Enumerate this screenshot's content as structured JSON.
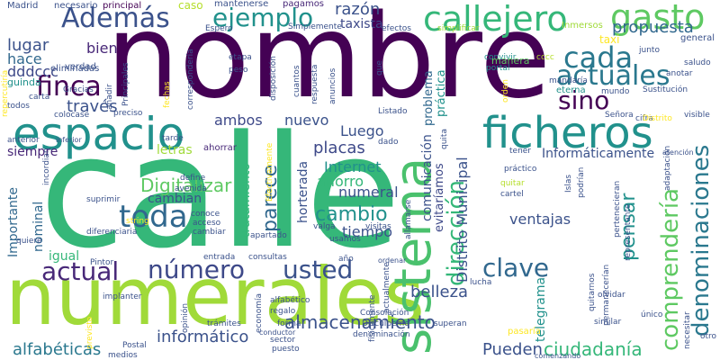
{
  "palette": {
    "dark_purple": "#440154",
    "deep_blue": "#3b528b",
    "teal": "#21918c",
    "green": "#5ec962",
    "bright_green": "#35b779",
    "lime": "#b5de2b",
    "yellow": "#fde725"
  },
  "words": [
    {
      "text": "nombre",
      "color": "#440154",
      "vertical": false
    },
    {
      "text": "calle",
      "color": "#35b779",
      "vertical": false
    },
    {
      "text": "numerales",
      "color": "#a0da39",
      "vertical": false
    },
    {
      "text": "espacio",
      "color": "#21918c",
      "vertical": false
    },
    {
      "text": "ficheros",
      "color": "#21918c",
      "vertical": false
    },
    {
      "text": "sistema",
      "color": "#4ac16d",
      "vertical": true
    },
    {
      "text": "callejero",
      "color": "#35b779",
      "vertical": false
    },
    {
      "text": "gasto",
      "color": "#5ec962",
      "vertical": false
    },
    {
      "text": "Además",
      "color": "#3b528b",
      "vertical": false
    },
    {
      "text": "ejemplo",
      "color": "#21918c",
      "vertical": false
    },
    {
      "text": "cada",
      "color": "#2a788e",
      "vertical": false
    },
    {
      "text": "actuales",
      "color": "#2a788e",
      "vertical": false
    },
    {
      "text": "sino",
      "color": "#440154",
      "vertical": false
    },
    {
      "text": "finca",
      "color": "#440154",
      "vertical": false
    },
    {
      "text": "toda",
      "color": "#31688e",
      "vertical": false
    },
    {
      "text": "actual",
      "color": "#482878",
      "vertical": false
    },
    {
      "text": "número",
      "color": "#3e4989",
      "vertical": false
    },
    {
      "text": "usted",
      "color": "#3b528b",
      "vertical": false
    },
    {
      "text": "clave",
      "color": "#31688e",
      "vertical": false
    },
    {
      "text": "dirección",
      "color": "#35b779",
      "vertical": true
    },
    {
      "text": "denominaciones",
      "color": "#2a788e",
      "vertical": true
    },
    {
      "text": "comprendería",
      "color": "#5ec962",
      "vertical": true
    },
    {
      "text": "pensar",
      "color": "#21918c",
      "vertical": true
    },
    {
      "text": "parece",
      "color": "#31688e",
      "vertical": true
    },
    {
      "text": "cambio",
      "color": "#21918c",
      "vertical": false
    },
    {
      "text": "Digitalizar",
      "color": "#5ec962",
      "vertical": false
    },
    {
      "text": "almacenamiento",
      "color": "#3b528b",
      "vertical": false
    },
    {
      "text": "informático",
      "color": "#3b528b",
      "vertical": false
    },
    {
      "text": "alfabéticas",
      "color": "#2a788e",
      "vertical": false
    },
    {
      "text": "ciudadanía",
      "color": "#35b779",
      "vertical": false
    },
    {
      "text": "Pueden",
      "color": "#3b528b",
      "vertical": false
    },
    {
      "text": "propuesta",
      "color": "#31688e",
      "vertical": false
    },
    {
      "text": "razón",
      "color": "#3b528b",
      "vertical": false
    },
    {
      "text": "taxista",
      "color": "#3e4989",
      "vertical": false
    },
    {
      "text": "lugar",
      "color": "#3b528b",
      "vertical": false
    },
    {
      "text": "hace",
      "color": "#31688e",
      "vertical": false
    },
    {
      "text": "bien",
      "color": "#482878",
      "vertical": false
    },
    {
      "text": "dddccc",
      "color": "#3e4989",
      "vertical": false
    },
    {
      "text": "través",
      "color": "#3b528b",
      "vertical": false
    },
    {
      "text": "ambos",
      "color": "#3e4989",
      "vertical": false
    },
    {
      "text": "nuevo",
      "color": "#3b528b",
      "vertical": false
    },
    {
      "text": "Luego",
      "color": "#3b528b",
      "vertical": false
    },
    {
      "text": "placas",
      "color": "#3e4989",
      "vertical": false
    },
    {
      "text": "Internet",
      "color": "#21918c",
      "vertical": false
    },
    {
      "text": "ahorro",
      "color": "#35b779",
      "vertical": false
    },
    {
      "text": "numeral",
      "color": "#3b528b",
      "vertical": false
    },
    {
      "text": "tiempo",
      "color": "#3b528b",
      "vertical": false
    },
    {
      "text": "ventajas",
      "color": "#3b528b",
      "vertical": false
    },
    {
      "text": "belleza",
      "color": "#3b528b",
      "vertical": false
    },
    {
      "text": "Informáticamente",
      "color": "#3b528b",
      "vertical": false
    },
    {
      "text": "siempre",
      "color": "#482878",
      "vertical": false
    },
    {
      "text": "letras",
      "color": "#a0da39",
      "vertical": false
    },
    {
      "text": "cambian",
      "color": "#3b528b",
      "vertical": false
    },
    {
      "text": "igual",
      "color": "#35b779",
      "vertical": false
    },
    {
      "text": "nominal",
      "color": "#31688e",
      "vertical": true
    },
    {
      "text": "Importante",
      "color": "#31688e",
      "vertical": true
    },
    {
      "text": "tratamiento",
      "color": "#35b779",
      "vertical": true
    },
    {
      "text": "horterada",
      "color": "#3b528b",
      "vertical": true
    },
    {
      "text": "Distrito Municipal",
      "color": "#3b528b",
      "vertical": true
    },
    {
      "text": "comunicación",
      "color": "#3b528b",
      "vertical": true
    },
    {
      "text": "evitaríamos",
      "color": "#3e4989",
      "vertical": true
    },
    {
      "text": "problema",
      "color": "#31688e",
      "vertical": true
    },
    {
      "text": "práctica",
      "color": "#21918c",
      "vertical": true
    },
    {
      "text": "telegrama",
      "color": "#21918c",
      "vertical": true
    },
    {
      "text": "Madrid",
      "color": "#3b528b",
      "vertical": false
    },
    {
      "text": "necesario",
      "color": "#3b528b",
      "vertical": false
    },
    {
      "text": "principal",
      "color": "#440154",
      "vertical": false
    },
    {
      "text": "caso",
      "color": "#b5de2b",
      "vertical": false
    },
    {
      "text": "mantenerse",
      "color": "#3b528b",
      "vertical": false
    },
    {
      "text": "pagamos",
      "color": "#482878",
      "vertical": false
    },
    {
      "text": "guinda",
      "color": "#21918c",
      "vertical": false
    },
    {
      "text": "eliminadas",
      "color": "#3b528b",
      "vertical": false
    },
    {
      "text": "Gracias",
      "color": "#3b528b",
      "vertical": false
    },
    {
      "text": "verdad",
      "color": "#3b528b",
      "vertical": false
    },
    {
      "text": "Espero",
      "color": "#3b528b",
      "vertical": false
    },
    {
      "text": "Simplemente",
      "color": "#3b528b",
      "vertical": false
    },
    {
      "text": "efectos",
      "color": "#3b528b",
      "vertical": false
    },
    {
      "text": "simplificar",
      "color": "#a0da39",
      "vertical": false
    },
    {
      "text": "Inmersos",
      "color": "#a0da39",
      "vertical": false
    },
    {
      "text": "taxi",
      "color": "#fde725",
      "vertical": false
    },
    {
      "text": "general",
      "color": "#3b528b",
      "vertical": false
    },
    {
      "text": "junto",
      "color": "#3b528b",
      "vertical": false
    },
    {
      "text": "cccc",
      "color": "#b5de2b",
      "vertical": false
    },
    {
      "text": "anotar",
      "color": "#3b528b",
      "vertical": false
    },
    {
      "text": "saludo",
      "color": "#3b528b",
      "vertical": false
    },
    {
      "text": "Sustitución",
      "color": "#3b528b",
      "vertical": false
    },
    {
      "text": "mandaría",
      "color": "#3b528b",
      "vertical": false
    },
    {
      "text": "eterna",
      "color": "#21918c",
      "vertical": false
    },
    {
      "text": "mundo",
      "color": "#3b528b",
      "vertical": false
    },
    {
      "text": "Señora",
      "color": "#3b528b",
      "vertical": false
    },
    {
      "text": "cifra",
      "color": "#3b528b",
      "vertical": false
    },
    {
      "text": "Distrito",
      "color": "#fde725",
      "vertical": false
    },
    {
      "text": "visible",
      "color": "#3b528b",
      "vertical": false
    },
    {
      "text": "atención",
      "color": "#3b528b",
      "vertical": false
    },
    {
      "text": "etapa",
      "color": "#3b528b",
      "vertical": false
    },
    {
      "text": "peso",
      "color": "#3b528b",
      "vertical": false
    },
    {
      "text": "convivir",
      "color": "#21918c",
      "vertical": false
    },
    {
      "text": "portal",
      "color": "#21918c",
      "vertical": false
    },
    {
      "text": "manera",
      "color": "#5ec962",
      "vertical": false
    },
    {
      "text": "Listado",
      "color": "#3b528b",
      "vertical": false
    },
    {
      "text": "preciso",
      "color": "#3b528b",
      "vertical": false
    },
    {
      "text": "colocase",
      "color": "#3b528b",
      "vertical": false
    },
    {
      "text": "todos",
      "color": "#3b528b",
      "vertical": false
    },
    {
      "text": "carta",
      "color": "#3b528b",
      "vertical": false
    },
    {
      "text": "anterior",
      "color": "#3b528b",
      "vertical": false
    },
    {
      "text": "inferior",
      "color": "#3b528b",
      "vertical": false
    },
    {
      "text": "tarde",
      "color": "#3b528b",
      "vertical": false
    },
    {
      "text": "ahorrar",
      "color": "#482878",
      "vertical": false
    },
    {
      "text": "dado",
      "color": "#3b528b",
      "vertical": false
    },
    {
      "text": "tener",
      "color": "#3b528b",
      "vertical": false
    },
    {
      "text": "práctico",
      "color": "#3b528b",
      "vertical": false
    },
    {
      "text": "quitar",
      "color": "#b5de2b",
      "vertical": false
    },
    {
      "text": "cartel",
      "color": "#3b528b",
      "vertical": false
    },
    {
      "text": "define",
      "color": "#3b528b",
      "vertical": false
    },
    {
      "text": "avenida",
      "color": "#3b528b",
      "vertical": false
    },
    {
      "text": "suprimir",
      "color": "#3b528b",
      "vertical": false
    },
    {
      "text": "string",
      "color": "#fde725",
      "vertical": false
    },
    {
      "text": "conoce",
      "color": "#3b528b",
      "vertical": false
    },
    {
      "text": "acceso",
      "color": "#3b528b",
      "vertical": false
    },
    {
      "text": "cambiar",
      "color": "#3b528b",
      "vertical": false
    },
    {
      "text": "diferenciaria",
      "color": "#3b528b",
      "vertical": false
    },
    {
      "text": "valga",
      "color": "#3b528b",
      "vertical": false
    },
    {
      "text": "visitas",
      "color": "#3b528b",
      "vertical": false
    },
    {
      "text": "apartado",
      "color": "#3b528b",
      "vertical": false
    },
    {
      "text": "usamos",
      "color": "#3b528b",
      "vertical": false
    },
    {
      "text": "quiere",
      "color": "#3b528b",
      "vertical": false
    },
    {
      "text": "Pintor",
      "color": "#3b528b",
      "vertical": false
    },
    {
      "text": "entrada",
      "color": "#3b528b",
      "vertical": false
    },
    {
      "text": "consultas",
      "color": "#3b528b",
      "vertical": false
    },
    {
      "text": "año",
      "color": "#3b528b",
      "vertical": false
    },
    {
      "text": "ordenar",
      "color": "#3b528b",
      "vertical": false
    },
    {
      "text": "lucha",
      "color": "#3b528b",
      "vertical": false
    },
    {
      "text": "olvidar",
      "color": "#3b528b",
      "vertical": false
    },
    {
      "text": "implanter",
      "color": "#3b528b",
      "vertical": false
    },
    {
      "text": "alfabético",
      "color": "#3b528b",
      "vertical": false
    },
    {
      "text": "regalo",
      "color": "#3b528b",
      "vertical": false
    },
    {
      "text": "trámites",
      "color": "#3b528b",
      "vertical": false
    },
    {
      "text": "forma",
      "color": "#3b528b",
      "vertical": false
    },
    {
      "text": "puesto",
      "color": "#3b528b",
      "vertical": false
    },
    {
      "text": "sector",
      "color": "#3b528b",
      "vertical": false
    },
    {
      "text": "superan",
      "color": "#3b528b",
      "vertical": false
    },
    {
      "text": "similar",
      "color": "#3b528b",
      "vertical": false
    },
    {
      "text": "único",
      "color": "#3b528b",
      "vertical": false
    },
    {
      "text": "otro",
      "color": "#3b528b",
      "vertical": false
    },
    {
      "text": "Postal",
      "color": "#3b528b",
      "vertical": false
    },
    {
      "text": "medios",
      "color": "#3b528b",
      "vertical": false
    },
    {
      "text": "conductor",
      "color": "#3b528b",
      "vertical": false
    },
    {
      "text": "comenzando",
      "color": "#3b528b",
      "vertical": false
    },
    {
      "text": "denominación",
      "color": "#3b528b",
      "vertical": false
    },
    {
      "text": "Disculpeme",
      "color": "#3b528b",
      "vertical": false
    },
    {
      "text": "pasaría",
      "color": "#fde725",
      "vertical": false
    },
    {
      "text": "Consolación",
      "color": "#3b528b",
      "vertical": false
    },
    {
      "text": "añadir",
      "color": "#3b528b",
      "vertical": true
    },
    {
      "text": "Principales",
      "color": "#3b528b",
      "vertical": true
    },
    {
      "text": "correspondería",
      "color": "#3b528b",
      "vertical": true
    },
    {
      "text": "disposición",
      "color": "#3b528b",
      "vertical": true
    },
    {
      "text": "respuesta",
      "color": "#3b528b",
      "vertical": true
    },
    {
      "text": "anuncios",
      "color": "#3b528b",
      "vertical": true
    },
    {
      "text": "cuantos",
      "color": "#3b528b",
      "vertical": true
    },
    {
      "text": "que",
      "color": "#3b528b",
      "vertical": true
    },
    {
      "text": "orden",
      "color": "#fde725",
      "vertical": true
    },
    {
      "text": "quita",
      "color": "#3b528b",
      "vertical": true
    },
    {
      "text": "Efectivamente",
      "color": "#fde725",
      "vertical": true
    },
    {
      "text": "allamarse",
      "color": "#3b528b",
      "vertical": true
    },
    {
      "text": "actualmente",
      "color": "#3b528b",
      "vertical": true
    },
    {
      "text": "físicamente",
      "color": "#3b528b",
      "vertical": true
    },
    {
      "text": "economía",
      "color": "#3b528b",
      "vertical": true
    },
    {
      "text": "opinión",
      "color": "#3b528b",
      "vertical": true
    },
    {
      "text": "Islas",
      "color": "#3b528b",
      "vertical": true
    },
    {
      "text": "podrían",
      "color": "#3b528b",
      "vertical": true
    },
    {
      "text": "quitarnos",
      "color": "#3b528b",
      "vertical": true
    },
    {
      "text": "permanecerían",
      "color": "#3b528b",
      "vertical": true
    },
    {
      "text": "pertenecieran",
      "color": "#3b528b",
      "vertical": true
    },
    {
      "text": "representante",
      "color": "#3b528b",
      "vertical": true
    },
    {
      "text": "adaptación",
      "color": "#3b528b",
      "vertical": true
    },
    {
      "text": "necesitar",
      "color": "#3b528b",
      "vertical": true
    },
    {
      "text": "repercutiría",
      "color": "#fde725",
      "vertical": true
    },
    {
      "text": "incordian",
      "color": "#3b528b",
      "vertical": true
    },
    {
      "text": "previsto",
      "color": "#fde725",
      "vertical": true
    },
    {
      "text": "fechas",
      "color": "#fde725",
      "vertical": true
    }
  ]
}
